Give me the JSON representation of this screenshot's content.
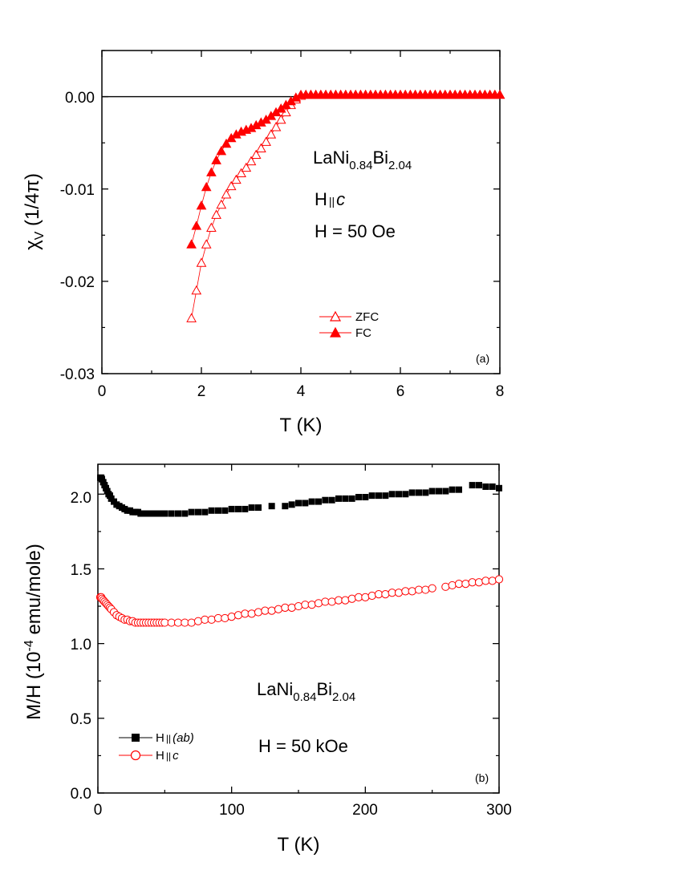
{
  "colors": {
    "axis": "#000000",
    "zfc": "#ff0000",
    "fc": "#ff0000",
    "hab": "#000000",
    "hc": "#ff0000"
  },
  "chart_data": [
    {
      "type": "scatter",
      "panel_label": "(a)",
      "xlabel": "T (K)",
      "ylabel_main": "χ",
      "ylabel_sub": "V",
      "ylabel_rest": " (1/4π)",
      "xlim": [
        0,
        8
      ],
      "ylim": [
        -0.03,
        0.005
      ],
      "x_ticks": [
        0,
        2,
        4,
        6,
        8
      ],
      "x_tick_labels": [
        "0",
        "2",
        "4",
        "6",
        "8"
      ],
      "y_ticks": [
        0.0,
        -0.01,
        -0.02,
        -0.03
      ],
      "y_tick_labels": [
        "0.00",
        "-0.01",
        "-0.02",
        "-0.03"
      ],
      "reference_line_y": 0,
      "annotation_compound": {
        "base": "LaNi",
        "sub1": "0.84",
        "mid": "Bi",
        "sub2": "2.04"
      },
      "annotation_field_dir": {
        "h": "H",
        "par": "||",
        "dir": "c"
      },
      "annotation_field": "H = 50 Oe",
      "legend_position": "center-right",
      "series": [
        {
          "name": "ZFC",
          "marker": "open-triangle",
          "x": [
            1.8,
            1.9,
            2.0,
            2.1,
            2.2,
            2.3,
            2.4,
            2.5,
            2.6,
            2.7,
            2.8,
            2.9,
            3.0,
            3.1,
            3.2,
            3.3,
            3.4,
            3.5,
            3.6,
            3.7,
            3.8,
            3.9,
            4.0,
            4.1,
            4.2,
            4.3,
            4.4,
            4.5,
            4.6,
            4.7,
            4.8,
            4.9,
            5.0,
            5.1,
            5.2,
            5.3,
            5.4,
            5.5,
            5.6,
            5.7,
            5.8,
            5.9,
            6.0,
            6.1,
            6.2,
            6.3,
            6.4,
            6.5,
            6.6,
            6.7,
            6.8,
            6.9,
            7.0,
            7.1,
            7.2,
            7.3,
            7.4,
            7.5,
            7.6,
            7.7,
            7.8,
            7.9,
            8.0
          ],
          "values": [
            -0.024,
            -0.021,
            -0.018,
            -0.016,
            -0.0142,
            -0.0128,
            -0.0117,
            -0.0106,
            -0.0097,
            -0.009,
            -0.0083,
            -0.0077,
            -0.007,
            -0.0063,
            -0.0056,
            -0.0049,
            -0.0041,
            -0.0033,
            -0.0025,
            -0.0017,
            -0.0009,
            -0.0003,
            0.0001,
            0.0002,
            0.0002,
            0.0002,
            0.0002,
            0.0002,
            0.0002,
            0.0002,
            0.0002,
            0.0002,
            0.0002,
            0.0002,
            0.0002,
            0.0002,
            0.0002,
            0.0002,
            0.0002,
            0.0002,
            0.0002,
            0.0002,
            0.0002,
            0.0002,
            0.0002,
            0.0002,
            0.0002,
            0.0002,
            0.0002,
            0.0002,
            0.0002,
            0.0002,
            0.0002,
            0.0002,
            0.0002,
            0.0002,
            0.0002,
            0.0002,
            0.0002,
            0.0002,
            0.0002,
            0.0002,
            0.0002
          ]
        },
        {
          "name": "FC",
          "marker": "filled-triangle",
          "x": [
            1.8,
            1.9,
            2.0,
            2.1,
            2.2,
            2.3,
            2.4,
            2.5,
            2.6,
            2.7,
            2.8,
            2.9,
            3.0,
            3.1,
            3.2,
            3.3,
            3.4,
            3.5,
            3.6,
            3.7,
            3.8,
            3.9,
            4.0,
            4.1,
            4.2,
            4.3,
            4.4,
            4.5,
            4.6,
            4.7,
            4.8,
            4.9,
            5.0,
            5.1,
            5.2,
            5.3,
            5.4,
            5.5,
            5.6,
            5.7,
            5.8,
            5.9,
            6.0,
            6.1,
            6.2,
            6.3,
            6.4,
            6.5,
            6.6,
            6.7,
            6.8,
            6.9,
            7.0,
            7.1,
            7.2,
            7.3,
            7.4,
            7.5,
            7.6,
            7.7,
            7.8,
            7.9,
            8.0
          ],
          "values": [
            -0.016,
            -0.014,
            -0.0118,
            -0.0098,
            -0.0082,
            -0.0069,
            -0.0059,
            -0.0051,
            -0.0045,
            -0.0041,
            -0.0038,
            -0.0036,
            -0.0034,
            -0.0031,
            -0.0028,
            -0.0025,
            -0.0021,
            -0.0017,
            -0.0013,
            -0.0009,
            -0.0005,
            -0.0001,
            0.0002,
            0.0002,
            0.0002,
            0.0002,
            0.0002,
            0.0002,
            0.0002,
            0.0002,
            0.0002,
            0.0002,
            0.0002,
            0.0002,
            0.0002,
            0.0002,
            0.0002,
            0.0002,
            0.0002,
            0.0002,
            0.0002,
            0.0002,
            0.0002,
            0.0002,
            0.0002,
            0.0002,
            0.0002,
            0.0002,
            0.0002,
            0.0002,
            0.0002,
            0.0002,
            0.0002,
            0.0002,
            0.0002,
            0.0002,
            0.0002,
            0.0002,
            0.0002,
            0.0002,
            0.0002,
            0.0002,
            0.0002
          ]
        }
      ]
    },
    {
      "type": "scatter",
      "panel_label": "(b)",
      "xlabel": "T (K)",
      "ylabel_pre": "M/H (10",
      "ylabel_sup": "-4",
      "ylabel_post": " emu/mole)",
      "xlim": [
        0,
        300
      ],
      "ylim": [
        0,
        2.2
      ],
      "x_ticks": [
        0,
        100,
        200,
        300
      ],
      "x_tick_labels": [
        "0",
        "100",
        "200",
        "300"
      ],
      "y_ticks": [
        0.0,
        0.5,
        1.0,
        1.5,
        2.0
      ],
      "y_tick_labels": [
        "0.0",
        "0.5",
        "1.0",
        "1.5",
        "2.0"
      ],
      "annotation_compound": {
        "base": "LaNi",
        "sub1": "0.84",
        "mid": "Bi",
        "sub2": "2.04"
      },
      "annotation_field": "H = 50 kOe",
      "legend_position": "bottom-left",
      "series": [
        {
          "name_h": "H",
          "name_par": "||",
          "name_dir": "(ab)",
          "marker": "filled-square",
          "x": [
            1.8,
            2.5,
            3,
            4,
            5,
            6,
            7,
            8,
            9,
            10,
            12,
            14,
            16,
            18,
            20,
            22,
            24,
            26,
            28,
            30,
            32,
            34,
            36,
            38,
            40,
            42,
            44,
            46,
            48,
            50,
            55,
            60,
            65,
            70,
            75,
            80,
            85,
            90,
            95,
            100,
            105,
            110,
            115,
            120,
            130,
            140,
            145,
            150,
            155,
            160,
            165,
            170,
            175,
            180,
            185,
            190,
            195,
            200,
            205,
            210,
            215,
            220,
            225,
            230,
            235,
            240,
            245,
            250,
            255,
            260,
            265,
            270,
            280,
            285,
            290,
            295,
            300
          ],
          "values": [
            2.11,
            2.11,
            2.1,
            2.08,
            2.06,
            2.04,
            2.02,
            2.0,
            1.99,
            1.97,
            1.95,
            1.93,
            1.92,
            1.91,
            1.9,
            1.89,
            1.89,
            1.88,
            1.88,
            1.88,
            1.87,
            1.87,
            1.87,
            1.87,
            1.87,
            1.87,
            1.87,
            1.87,
            1.87,
            1.87,
            1.87,
            1.87,
            1.87,
            1.88,
            1.88,
            1.88,
            1.89,
            1.89,
            1.89,
            1.9,
            1.9,
            1.9,
            1.91,
            1.91,
            1.92,
            1.92,
            1.93,
            1.94,
            1.94,
            1.95,
            1.95,
            1.96,
            1.96,
            1.97,
            1.97,
            1.97,
            1.98,
            1.98,
            1.99,
            1.99,
            1.99,
            2.0,
            2.0,
            2.0,
            2.01,
            2.01,
            2.01,
            2.02,
            2.02,
            2.02,
            2.03,
            2.03,
            2.06,
            2.06,
            2.05,
            2.05,
            2.04
          ]
        },
        {
          "name_h": "H",
          "name_par": "||",
          "name_dir": "c",
          "marker": "open-circle",
          "x": [
            1.8,
            2.5,
            3,
            4,
            5,
            6,
            7,
            8,
            9,
            10,
            12,
            14,
            16,
            18,
            20,
            22,
            24,
            26,
            28,
            30,
            32,
            34,
            36,
            38,
            40,
            42,
            44,
            46,
            48,
            50,
            55,
            60,
            65,
            70,
            75,
            80,
            85,
            90,
            95,
            100,
            105,
            110,
            115,
            120,
            125,
            130,
            135,
            140,
            145,
            150,
            155,
            160,
            165,
            170,
            175,
            180,
            185,
            190,
            195,
            200,
            205,
            210,
            215,
            220,
            225,
            230,
            235,
            240,
            245,
            250,
            260,
            265,
            270,
            275,
            280,
            285,
            290,
            295,
            300
          ],
          "values": [
            1.31,
            1.31,
            1.3,
            1.29,
            1.28,
            1.27,
            1.26,
            1.25,
            1.24,
            1.23,
            1.21,
            1.19,
            1.18,
            1.17,
            1.16,
            1.16,
            1.15,
            1.15,
            1.14,
            1.14,
            1.14,
            1.14,
            1.14,
            1.14,
            1.14,
            1.14,
            1.14,
            1.14,
            1.14,
            1.14,
            1.14,
            1.14,
            1.14,
            1.14,
            1.15,
            1.16,
            1.16,
            1.17,
            1.17,
            1.18,
            1.19,
            1.2,
            1.2,
            1.21,
            1.22,
            1.22,
            1.23,
            1.24,
            1.24,
            1.25,
            1.26,
            1.26,
            1.27,
            1.28,
            1.28,
            1.29,
            1.29,
            1.3,
            1.31,
            1.31,
            1.32,
            1.33,
            1.33,
            1.34,
            1.34,
            1.35,
            1.35,
            1.36,
            1.36,
            1.37,
            1.38,
            1.39,
            1.4,
            1.4,
            1.41,
            1.41,
            1.42,
            1.42,
            1.43
          ]
        }
      ]
    }
  ]
}
